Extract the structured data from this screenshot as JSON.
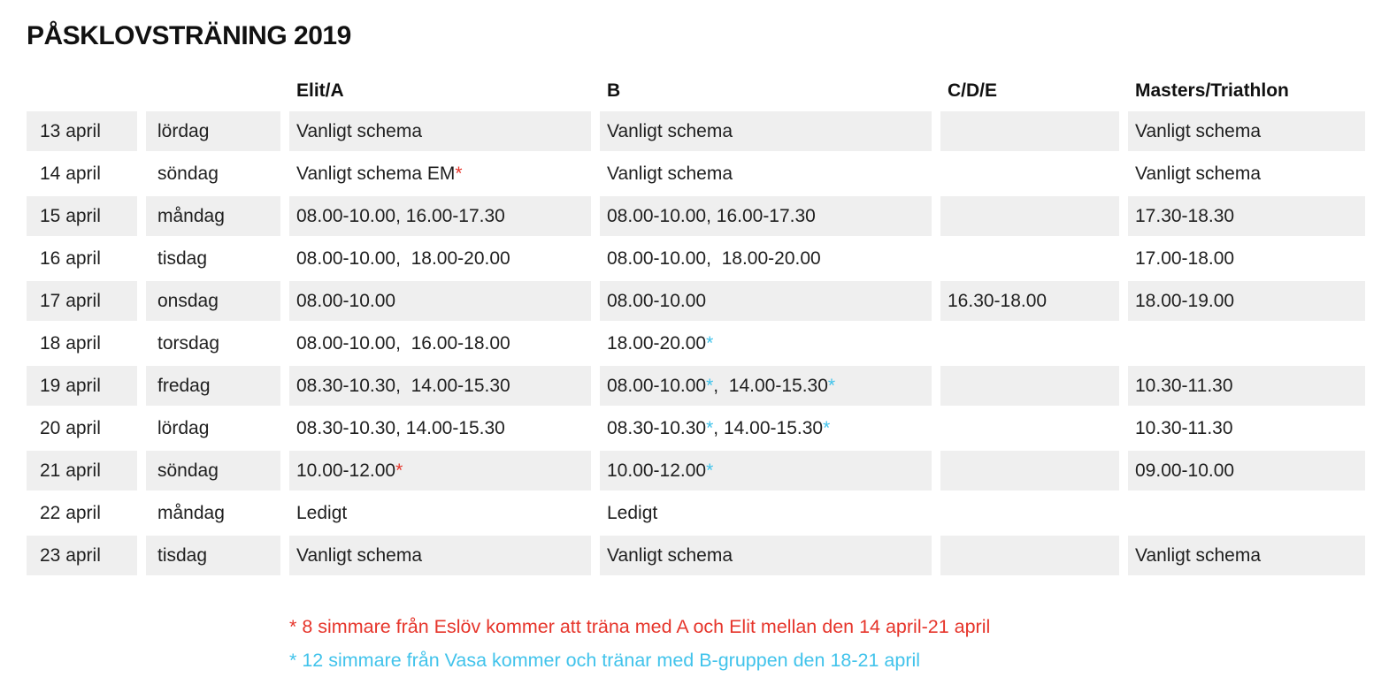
{
  "title": "PÅSKLOVSTRÄNING 2019",
  "colors": {
    "red": "#e6352b",
    "blue": "#41c3eb",
    "row_gray": "#efefef",
    "text": "#1f1f1f"
  },
  "table": {
    "headers": [
      "",
      "",
      "Elit/A",
      "B",
      "C/D/E",
      "Masters/Triathlon"
    ],
    "rows": [
      {
        "date": "13 april",
        "day": "lördag",
        "elit_a": [
          {
            "t": "Vanligt schema"
          }
        ],
        "b": [
          {
            "t": "Vanligt schema"
          }
        ],
        "cde": [],
        "masters": [
          {
            "t": "Vanligt schema"
          }
        ]
      },
      {
        "date": "14 april",
        "day": "söndag",
        "elit_a": [
          {
            "t": "Vanligt schema EM"
          },
          {
            "t": "*",
            "c": "red"
          }
        ],
        "b": [
          {
            "t": "Vanligt schema"
          }
        ],
        "cde": [],
        "masters": [
          {
            "t": "Vanligt schema"
          }
        ]
      },
      {
        "date": "15 april",
        "day": "måndag",
        "elit_a": [
          {
            "t": "08.00-10.00, 16.00-17.30"
          }
        ],
        "b": [
          {
            "t": "08.00-10.00, 16.00-17.30"
          }
        ],
        "cde": [],
        "masters": [
          {
            "t": "17.30-18.30"
          }
        ]
      },
      {
        "date": "16 april",
        "day": "tisdag",
        "elit_a": [
          {
            "t": "08.00-10.00,  18.00-20.00"
          }
        ],
        "b": [
          {
            "t": "08.00-10.00,  18.00-20.00"
          }
        ],
        "cde": [],
        "masters": [
          {
            "t": "17.00-18.00"
          }
        ]
      },
      {
        "date": "17 april",
        "day": "onsdag",
        "elit_a": [
          {
            "t": "08.00-10.00"
          }
        ],
        "b": [
          {
            "t": "08.00-10.00"
          }
        ],
        "cde": [
          {
            "t": "16.30-18.00"
          }
        ],
        "masters": [
          {
            "t": "18.00-19.00"
          }
        ]
      },
      {
        "date": "18 april",
        "day": "torsdag",
        "elit_a": [
          {
            "t": "08.00-10.00,  16.00-18.00"
          }
        ],
        "b": [
          {
            "t": "18.00-20.00"
          },
          {
            "t": "*",
            "c": "blue"
          }
        ],
        "cde": [],
        "masters": []
      },
      {
        "date": "19 april",
        "day": "fredag",
        "elit_a": [
          {
            "t": "08.30-10.30,  14.00-15.30"
          }
        ],
        "b": [
          {
            "t": "08.00-10.00"
          },
          {
            "t": "*",
            "c": "blue"
          },
          {
            "t": ",  14.00-15.30"
          },
          {
            "t": "*",
            "c": "blue"
          }
        ],
        "cde": [],
        "masters": [
          {
            "t": "10.30-11.30"
          }
        ]
      },
      {
        "date": "20 april",
        "day": "lördag",
        "elit_a": [
          {
            "t": "08.30-10.30, 14.00-15.30"
          }
        ],
        "b": [
          {
            "t": "08.30-10.30"
          },
          {
            "t": "*",
            "c": "blue"
          },
          {
            "t": ", 14.00-15.30"
          },
          {
            "t": "*",
            "c": "blue"
          }
        ],
        "cde": [],
        "masters": [
          {
            "t": "10.30-11.30"
          }
        ]
      },
      {
        "date": "21 april",
        "day": "söndag",
        "elit_a": [
          {
            "t": "10.00-12.00"
          },
          {
            "t": "*",
            "c": "red"
          }
        ],
        "b": [
          {
            "t": "10.00-12.00"
          },
          {
            "t": "*",
            "c": "blue"
          }
        ],
        "cde": [],
        "masters": [
          {
            "t": "09.00-10.00"
          }
        ]
      },
      {
        "date": "22 april",
        "day": "måndag",
        "elit_a": [
          {
            "t": "Ledigt"
          }
        ],
        "b": [
          {
            "t": "Ledigt"
          }
        ],
        "cde": [],
        "masters": []
      },
      {
        "date": "23 april",
        "day": "tisdag",
        "elit_a": [
          {
            "t": "Vanligt schema"
          }
        ],
        "b": [
          {
            "t": "Vanligt schema"
          }
        ],
        "cde": [],
        "masters": [
          {
            "t": "Vanligt schema"
          }
        ]
      }
    ]
  },
  "footnotes": [
    {
      "text": "* 8 simmare från Eslöv kommer att träna med A och Elit mellan den 14 april-21 april",
      "color": "red"
    },
    {
      "text": "* 12 simmare från Vasa kommer och tränar med B-gruppen den 18-21 april",
      "color": "blue"
    }
  ]
}
